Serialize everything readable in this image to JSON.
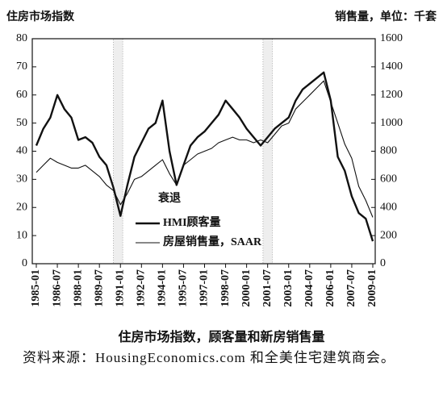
{
  "chart_data": {
    "type": "line",
    "y_label": "住房市场指数",
    "y2_label": "销售量，单位：千套",
    "caption": "住房市场指数，顾客量和新房销售量",
    "source": "资料来源：HousingEconomics.com 和全美住宅建筑商会。",
    "x": [
      "1985-01",
      "1985-07",
      "1986-01",
      "1986-07",
      "1987-01",
      "1987-07",
      "1988-01",
      "1988-07",
      "1989-01",
      "1989-07",
      "1990-01",
      "1990-07",
      "1991-01",
      "1991-07",
      "1992-01",
      "1992-07",
      "1993-01",
      "1993-07",
      "1994-01",
      "1994-07",
      "1995-01",
      "1995-07",
      "1996-01",
      "1996-07",
      "1997-01",
      "1997-07",
      "1998-01",
      "1998-07",
      "1999-01",
      "1999-07",
      "2000-01",
      "2000-07",
      "2001-01",
      "2001-07",
      "2002-01",
      "2002-07",
      "2003-01",
      "2003-07",
      "2004-01",
      "2004-07",
      "2005-01",
      "2005-07",
      "2006-01",
      "2006-07",
      "2007-01",
      "2007-07",
      "2008-01",
      "2008-07",
      "2009-01"
    ],
    "xticks": [
      "1985-01",
      "1986-07",
      "1988-01",
      "1989-07",
      "1991-01",
      "1992-07",
      "1994-01",
      "1995-07",
      "1997-01",
      "1998-07",
      "2000-01",
      "2001-07",
      "2003-01",
      "2004-07",
      "2006-01",
      "2007-07",
      "2009-01"
    ],
    "recession_name": "衰退",
    "recessions": [
      [
        "1990-07",
        "1991-03"
      ],
      [
        "2001-03",
        "2001-11"
      ]
    ],
    "ylim": [
      0,
      80
    ],
    "yticks": [
      0,
      10,
      20,
      30,
      40,
      50,
      60,
      70,
      80
    ],
    "y2lim": [
      0,
      1600
    ],
    "y2ticks": [
      0,
      200,
      400,
      600,
      800,
      1000,
      1200,
      1400,
      1600
    ],
    "series": [
      {
        "name": "HMI顾客量",
        "color": "#111111",
        "width": 2.4,
        "values": [
          42,
          48,
          52,
          60,
          55,
          52,
          44,
          45,
          43,
          38,
          35,
          27,
          17,
          28,
          38,
          43,
          48,
          50,
          58,
          40,
          28,
          35,
          42,
          45,
          47,
          50,
          53,
          58,
          55,
          52,
          48,
          45,
          42,
          45,
          48,
          50,
          52,
          58,
          62,
          64,
          66,
          68,
          58,
          38,
          33,
          24,
          18,
          16,
          8
        ]
      },
      {
        "name": "房屋销售量，SAAR",
        "color": "#111111",
        "width": 1.1,
        "axis": "y2",
        "values": [
          650,
          700,
          750,
          720,
          700,
          680,
          680,
          700,
          660,
          620,
          560,
          520,
          420,
          500,
          600,
          620,
          660,
          700,
          740,
          640,
          560,
          700,
          740,
          780,
          800,
          820,
          860,
          880,
          900,
          880,
          880,
          860,
          880,
          860,
          920,
          980,
          1000,
          1100,
          1150,
          1200,
          1250,
          1300,
          1150,
          1000,
          850,
          750,
          550,
          450,
          330
        ]
      }
    ]
  }
}
